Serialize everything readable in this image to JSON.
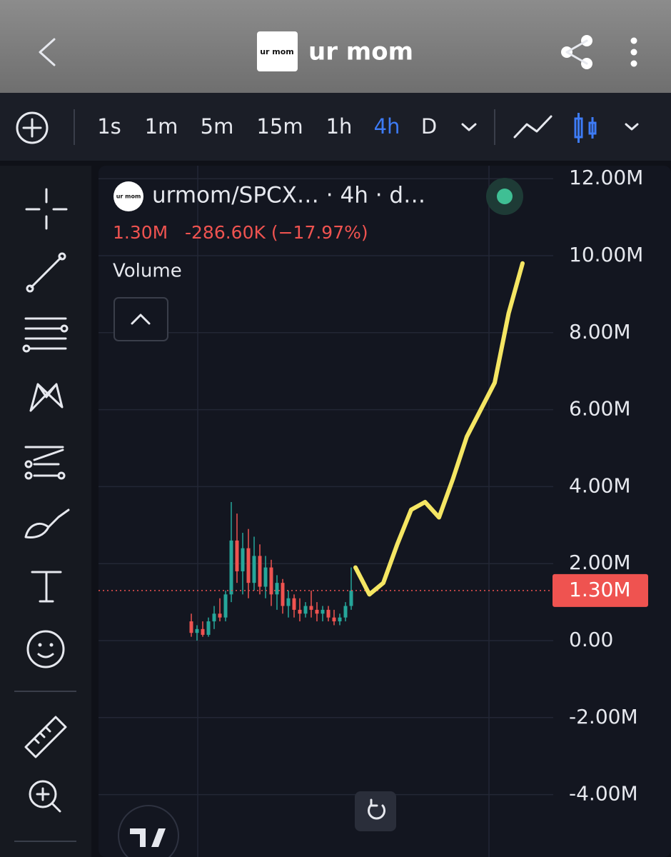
{
  "header": {
    "title": "ur mom",
    "logo_text": "ur mom"
  },
  "timeframes": [
    "1s",
    "1m",
    "5m",
    "15m",
    "1h",
    "4h",
    "D"
  ],
  "selected_timeframe": 5,
  "chart_data": {
    "type": "candlestick",
    "title": "urmom/SPCX… · 4h · d…",
    "symbol_logo_text": "ur mom",
    "change_label": "-286.60K (−17.97%)",
    "indicator": "Volume",
    "open": [
      500000,
      200000,
      300000,
      150000,
      500000,
      700000,
      600000,
      1200000,
      2600000,
      1800000,
      2400000,
      1500000,
      2200000,
      1400000,
      1900000,
      1200000,
      1500000,
      900000,
      1100000,
      800000,
      700000,
      900000,
      800000,
      700000,
      800000,
      600000,
      500000,
      600000,
      900000
    ],
    "high": [
      700000,
      400000,
      500000,
      600000,
      900000,
      1100000,
      1300000,
      3600000,
      3300000,
      2800000,
      2900000,
      2700000,
      2500000,
      2200000,
      2100000,
      1700000,
      1600000,
      1300000,
      1200000,
      1100000,
      1000000,
      1300000,
      1000000,
      900000,
      900000,
      800000,
      700000,
      1000000,
      1900000
    ],
    "low": [
      100000,
      0,
      100000,
      100000,
      300000,
      500000,
      500000,
      1000000,
      1500000,
      1200000,
      1100000,
      1300000,
      1200000,
      1100000,
      900000,
      800000,
      700000,
      600000,
      600000,
      500000,
      600000,
      600000,
      500000,
      500000,
      500000,
      400000,
      400000,
      500000,
      800000
    ],
    "close": [
      200000,
      300000,
      150000,
      500000,
      700000,
      600000,
      1200000,
      2600000,
      1800000,
      2400000,
      1500000,
      2200000,
      1400000,
      1900000,
      1200000,
      1500000,
      900000,
      1100000,
      800000,
      700000,
      900000,
      800000,
      700000,
      800000,
      600000,
      500000,
      600000,
      900000,
      1300000
    ],
    "up_color": "#26a69a",
    "down_color": "#ef5350",
    "ylim": [
      -5620000,
      12450000
    ],
    "yticks": [
      {
        "value": 12000000,
        "label": "12.00M"
      },
      {
        "value": 10000000,
        "label": "10.00M"
      },
      {
        "value": 8000000,
        "label": "8.00M"
      },
      {
        "value": 6000000,
        "label": "6.00M"
      },
      {
        "value": 4000000,
        "label": "4.00M"
      },
      {
        "value": 2000000,
        "label": "2.00M"
      },
      {
        "value": 0,
        "label": "0.00"
      },
      {
        "value": -2000000,
        "label": "-2.00M"
      },
      {
        "value": -4000000,
        "label": "-4.00M"
      }
    ],
    "grid": true,
    "last_price": {
      "value": 1300000,
      "label": "1.30M"
    },
    "drawing": {
      "color": "#f5e663",
      "values": [
        1900000,
        1200000,
        1500000,
        2500000,
        3400000,
        3600000,
        3200000,
        4200000,
        5300000,
        6000000,
        6700000,
        8500000,
        9800000
      ]
    }
  }
}
